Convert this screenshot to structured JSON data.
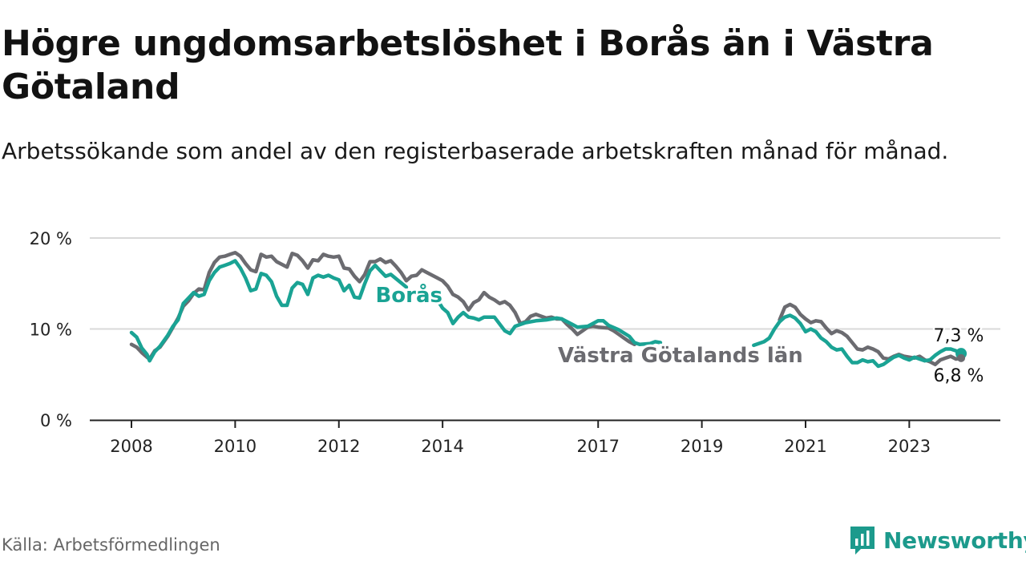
{
  "header": {
    "title": "Högre ungdomsarbetslöshet i Borås än i Västra Götaland",
    "subtitle": "Arbetssökande som andel av den registerbaserade arbetskraften månad för månad."
  },
  "footer": {
    "source": "Källa: Arbetsförmedlingen",
    "brand": "Newsworthy"
  },
  "colors": {
    "boras": "#1aa394",
    "vgl": "#6b6b70",
    "grid": "#d9d9d9",
    "axis": "#222222",
    "brand": "#1c9a8c"
  },
  "chart_data": {
    "type": "line",
    "title": "Högre ungdomsarbetslöshet i Borås än i Västra Götaland",
    "xlabel": "",
    "ylabel": "",
    "xlim": [
      2008,
      2024.2
    ],
    "ylim": [
      0,
      20
    ],
    "y_ticks": [
      {
        "value": 0,
        "label": "0 %"
      },
      {
        "value": 10,
        "label": "10 %"
      },
      {
        "value": 20,
        "label": "20 %"
      }
    ],
    "x_ticks": [
      {
        "value": 2008,
        "label": "2008"
      },
      {
        "value": 2010,
        "label": "2010"
      },
      {
        "value": 2012,
        "label": "2012"
      },
      {
        "value": 2014,
        "label": "2014"
      },
      {
        "value": 2017,
        "label": "2017"
      },
      {
        "value": 2019,
        "label": "2019"
      },
      {
        "value": 2021,
        "label": "2021"
      },
      {
        "value": 2023,
        "label": "2023"
      }
    ],
    "grid": true,
    "series": [
      {
        "name": "Borås",
        "label": "Borås",
        "color_key": "boras",
        "last_label": "7,3 %",
        "segments": [
          [
            [
              2008.0,
              9.6
            ],
            [
              2008.1,
              9.1
            ],
            [
              2008.2,
              7.9
            ],
            [
              2008.3,
              7.2
            ],
            [
              2008.35,
              6.5
            ],
            [
              2008.45,
              7.5
            ],
            [
              2008.55,
              8.1
            ],
            [
              2008.7,
              9.3
            ],
            [
              2008.8,
              10.3
            ],
            [
              2008.9,
              11.0
            ],
            [
              2009.0,
              12.8
            ],
            [
              2009.1,
              13.4
            ],
            [
              2009.2,
              14.0
            ],
            [
              2009.3,
              13.6
            ],
            [
              2009.4,
              13.8
            ],
            [
              2009.5,
              15.3
            ],
            [
              2009.6,
              16.2
            ],
            [
              2009.7,
              16.8
            ],
            [
              2009.8,
              17.0
            ],
            [
              2009.9,
              17.2
            ],
            [
              2010.0,
              17.5
            ],
            [
              2010.1,
              16.7
            ],
            [
              2010.2,
              15.6
            ],
            [
              2010.3,
              14.2
            ],
            [
              2010.4,
              14.4
            ],
            [
              2010.5,
              16.1
            ],
            [
              2010.6,
              15.9
            ],
            [
              2010.7,
              15.2
            ],
            [
              2010.8,
              13.6
            ],
            [
              2010.9,
              12.6
            ],
            [
              2011.0,
              12.6
            ],
            [
              2011.1,
              14.5
            ],
            [
              2011.2,
              15.1
            ],
            [
              2011.3,
              14.9
            ],
            [
              2011.4,
              13.8
            ],
            [
              2011.5,
              15.6
            ],
            [
              2011.6,
              15.9
            ],
            [
              2011.7,
              15.7
            ],
            [
              2011.8,
              15.9
            ],
            [
              2011.9,
              15.6
            ],
            [
              2012.0,
              15.4
            ],
            [
              2012.1,
              14.2
            ],
            [
              2012.2,
              14.8
            ],
            [
              2012.3,
              13.5
            ],
            [
              2012.4,
              13.4
            ],
            [
              2012.5,
              15.0
            ],
            [
              2012.6,
              16.4
            ],
            [
              2012.7,
              17.0
            ],
            [
              2012.8,
              16.4
            ],
            [
              2012.9,
              15.8
            ],
            [
              2013.0,
              16.0
            ],
            [
              2013.3,
              14.6
            ]
          ],
          [
            [
              2013.8,
              14.0
            ],
            [
              2013.9,
              13.2
            ],
            [
              2014.0,
              12.3
            ],
            [
              2014.1,
              11.8
            ],
            [
              2014.2,
              10.6
            ],
            [
              2014.3,
              11.3
            ],
            [
              2014.4,
              11.8
            ],
            [
              2014.5,
              11.3
            ],
            [
              2014.6,
              11.2
            ],
            [
              2014.7,
              11.0
            ],
            [
              2014.8,
              11.3
            ],
            [
              2015.0,
              11.3
            ],
            [
              2015.2,
              9.8
            ],
            [
              2015.3,
              9.5
            ],
            [
              2015.4,
              10.3
            ],
            [
              2015.6,
              10.7
            ],
            [
              2015.8,
              10.9
            ],
            [
              2016.0,
              11.0
            ],
            [
              2016.2,
              11.2
            ],
            [
              2016.3,
              11.1
            ],
            [
              2016.5,
              10.5
            ],
            [
              2016.6,
              10.2
            ],
            [
              2016.8,
              10.3
            ],
            [
              2017.0,
              10.9
            ],
            [
              2017.1,
              10.9
            ],
            [
              2017.2,
              10.4
            ],
            [
              2017.4,
              9.9
            ],
            [
              2017.6,
              9.2
            ],
            [
              2017.7,
              8.5
            ],
            [
              2017.8,
              8.3
            ],
            [
              2018.0,
              8.4
            ],
            [
              2018.1,
              8.6
            ],
            [
              2018.2,
              8.5
            ]
          ],
          [
            [
              2020.0,
              8.2
            ],
            [
              2020.2,
              8.6
            ],
            [
              2020.3,
              9.0
            ],
            [
              2020.4,
              10.0
            ],
            [
              2020.5,
              10.8
            ],
            [
              2020.6,
              11.3
            ],
            [
              2020.7,
              11.5
            ],
            [
              2020.8,
              11.2
            ],
            [
              2020.9,
              10.6
            ],
            [
              2021.0,
              9.7
            ],
            [
              2021.1,
              10.0
            ],
            [
              2021.2,
              9.7
            ],
            [
              2021.3,
              9.0
            ],
            [
              2021.4,
              8.6
            ],
            [
              2021.5,
              8.0
            ],
            [
              2021.6,
              7.7
            ],
            [
              2021.7,
              7.8
            ],
            [
              2021.8,
              7.0
            ],
            [
              2021.9,
              6.3
            ],
            [
              2022.0,
              6.3
            ],
            [
              2022.1,
              6.6
            ],
            [
              2022.2,
              6.4
            ],
            [
              2022.3,
              6.5
            ],
            [
              2022.4,
              5.9
            ],
            [
              2022.5,
              6.1
            ],
            [
              2022.6,
              6.5
            ],
            [
              2022.7,
              6.9
            ],
            [
              2022.8,
              7.1
            ],
            [
              2022.9,
              6.8
            ],
            [
              2023.0,
              6.6
            ],
            [
              2023.1,
              6.9
            ],
            [
              2023.2,
              6.7
            ],
            [
              2023.3,
              6.5
            ],
            [
              2023.4,
              6.6
            ],
            [
              2023.5,
              7.1
            ],
            [
              2023.6,
              7.5
            ],
            [
              2023.7,
              7.8
            ],
            [
              2023.8,
              7.8
            ],
            [
              2023.9,
              7.6
            ],
            [
              2024.0,
              7.3
            ]
          ]
        ]
      },
      {
        "name": "Västra Götalands län",
        "label": "Västra Götalands län",
        "color_key": "vgl",
        "last_label": "6,8 %",
        "segments": [
          [
            [
              2008.0,
              8.3
            ],
            [
              2008.1,
              8.0
            ],
            [
              2008.2,
              7.4
            ],
            [
              2008.3,
              6.9
            ],
            [
              2008.35,
              6.7
            ],
            [
              2008.45,
              7.6
            ],
            [
              2008.55,
              8.0
            ],
            [
              2008.7,
              9.2
            ],
            [
              2008.8,
              10.2
            ],
            [
              2008.9,
              11.2
            ],
            [
              2009.0,
              12.5
            ],
            [
              2009.1,
              13.1
            ],
            [
              2009.2,
              13.9
            ],
            [
              2009.3,
              14.4
            ],
            [
              2009.4,
              14.3
            ],
            [
              2009.5,
              16.2
            ],
            [
              2009.6,
              17.3
            ],
            [
              2009.7,
              17.9
            ],
            [
              2009.8,
              18.0
            ],
            [
              2009.9,
              18.2
            ],
            [
              2010.0,
              18.4
            ],
            [
              2010.1,
              18.0
            ],
            [
              2010.2,
              17.2
            ],
            [
              2010.3,
              16.5
            ],
            [
              2010.4,
              16.3
            ],
            [
              2010.5,
              18.2
            ],
            [
              2010.6,
              17.9
            ],
            [
              2010.7,
              18.0
            ],
            [
              2010.8,
              17.4
            ],
            [
              2010.9,
              17.1
            ],
            [
              2011.0,
              16.8
            ],
            [
              2011.1,
              18.3
            ],
            [
              2011.2,
              18.1
            ],
            [
              2011.3,
              17.5
            ],
            [
              2011.4,
              16.7
            ],
            [
              2011.5,
              17.6
            ],
            [
              2011.6,
              17.5
            ],
            [
              2011.7,
              18.2
            ],
            [
              2011.8,
              18.0
            ],
            [
              2011.9,
              17.9
            ],
            [
              2012.0,
              18.0
            ],
            [
              2012.1,
              16.7
            ],
            [
              2012.2,
              16.6
            ],
            [
              2012.3,
              15.8
            ],
            [
              2012.4,
              15.2
            ],
            [
              2012.5,
              16.0
            ],
            [
              2012.6,
              17.4
            ],
            [
              2012.7,
              17.4
            ],
            [
              2012.8,
              17.7
            ],
            [
              2012.9,
              17.3
            ],
            [
              2013.0,
              17.5
            ],
            [
              2013.1,
              16.9
            ],
            [
              2013.2,
              16.2
            ],
            [
              2013.3,
              15.3
            ],
            [
              2013.4,
              15.8
            ],
            [
              2013.5,
              15.9
            ],
            [
              2013.6,
              16.5
            ],
            [
              2013.7,
              16.2
            ],
            [
              2013.8,
              15.9
            ],
            [
              2013.9,
              15.6
            ],
            [
              2014.0,
              15.3
            ],
            [
              2014.1,
              14.7
            ],
            [
              2014.2,
              13.8
            ],
            [
              2014.3,
              13.5
            ],
            [
              2014.4,
              13.0
            ],
            [
              2014.5,
              12.1
            ],
            [
              2014.6,
              12.9
            ],
            [
              2014.7,
              13.2
            ],
            [
              2014.8,
              14.0
            ],
            [
              2014.9,
              13.5
            ],
            [
              2015.0,
              13.2
            ],
            [
              2015.1,
              12.8
            ],
            [
              2015.2,
              13.0
            ],
            [
              2015.3,
              12.6
            ],
            [
              2015.4,
              11.8
            ],
            [
              2015.5,
              10.6
            ],
            [
              2015.6,
              10.8
            ],
            [
              2015.7,
              11.4
            ],
            [
              2015.8,
              11.6
            ],
            [
              2015.9,
              11.4
            ],
            [
              2016.0,
              11.2
            ],
            [
              2016.1,
              11.3
            ],
            [
              2016.2,
              11.1
            ],
            [
              2016.3,
              11.1
            ],
            [
              2016.4,
              10.5
            ],
            [
              2016.5,
              10.0
            ],
            [
              2016.6,
              9.4
            ],
            [
              2016.7,
              9.8
            ],
            [
              2016.8,
              10.2
            ],
            [
              2016.9,
              10.3
            ],
            [
              2017.0,
              10.2
            ],
            [
              2017.2,
              10.1
            ],
            [
              2017.3,
              9.8
            ],
            [
              2017.4,
              9.4
            ],
            [
              2017.5,
              9.0
            ],
            [
              2017.6,
              8.6
            ],
            [
              2017.7,
              8.3
            ]
          ],
          [
            [
              2020.5,
              11.0
            ],
            [
              2020.6,
              12.4
            ],
            [
              2020.7,
              12.7
            ],
            [
              2020.8,
              12.4
            ],
            [
              2020.9,
              11.6
            ],
            [
              2021.0,
              11.1
            ],
            [
              2021.1,
              10.7
            ],
            [
              2021.2,
              10.9
            ],
            [
              2021.3,
              10.8
            ],
            [
              2021.4,
              10.1
            ],
            [
              2021.5,
              9.5
            ],
            [
              2021.6,
              9.8
            ],
            [
              2021.7,
              9.6
            ],
            [
              2021.8,
              9.2
            ],
            [
              2021.9,
              8.5
            ],
            [
              2022.0,
              7.8
            ],
            [
              2022.1,
              7.7
            ],
            [
              2022.2,
              8.0
            ],
            [
              2022.3,
              7.8
            ],
            [
              2022.4,
              7.5
            ],
            [
              2022.5,
              6.8
            ],
            [
              2022.6,
              6.7
            ],
            [
              2022.7,
              7.0
            ],
            [
              2022.8,
              7.2
            ],
            [
              2022.9,
              7.0
            ],
            [
              2023.0,
              6.9
            ],
            [
              2023.1,
              6.8
            ],
            [
              2023.2,
              7.0
            ],
            [
              2023.3,
              6.6
            ],
            [
              2023.4,
              6.4
            ],
            [
              2023.5,
              6.1
            ],
            [
              2023.6,
              6.6
            ],
            [
              2023.7,
              6.8
            ],
            [
              2023.8,
              7.0
            ],
            [
              2023.9,
              6.7
            ],
            [
              2024.0,
              6.8
            ]
          ]
        ]
      }
    ]
  }
}
